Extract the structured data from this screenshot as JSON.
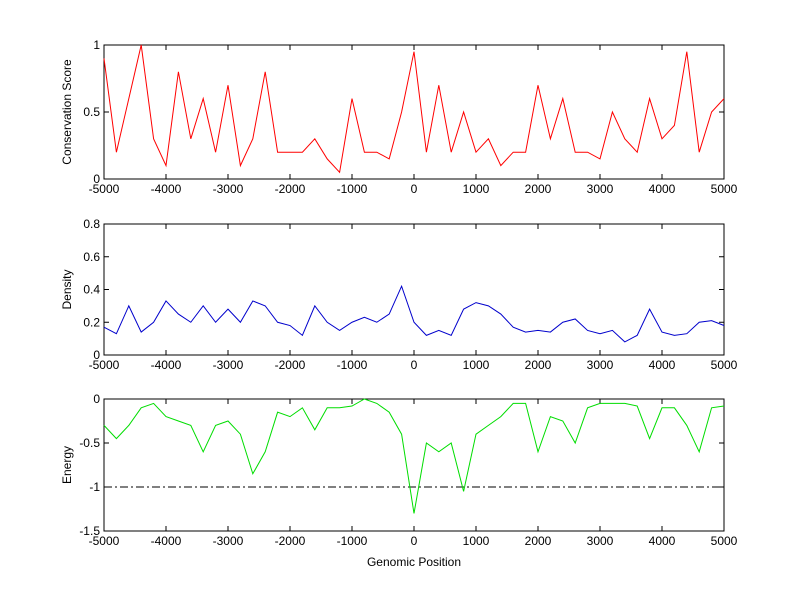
{
  "chart_data": [
    {
      "type": "line",
      "ylabel": "Conservation Score",
      "color": "#ff0000",
      "x": [
        -5000,
        -4800,
        -4600,
        -4400,
        -4200,
        -4000,
        -3800,
        -3600,
        -3400,
        -3200,
        -3000,
        -2800,
        -2600,
        -2400,
        -2200,
        -2000,
        -1800,
        -1600,
        -1400,
        -1200,
        -1000,
        -800,
        -600,
        -400,
        -200,
        0,
        200,
        400,
        600,
        800,
        1000,
        1200,
        1400,
        1600,
        1800,
        2000,
        2200,
        2400,
        2600,
        2800,
        3000,
        3200,
        3400,
        3600,
        3800,
        4000,
        4200,
        4400,
        4600,
        4800,
        5000
      ],
      "values": [
        0.9,
        0.2,
        0.6,
        1.0,
        0.3,
        0.1,
        0.8,
        0.3,
        0.6,
        0.2,
        0.7,
        0.1,
        0.3,
        0.8,
        0.2,
        0.2,
        0.2,
        0.3,
        0.15,
        0.05,
        0.6,
        0.2,
        0.2,
        0.15,
        0.5,
        0.95,
        0.2,
        0.7,
        0.2,
        0.5,
        0.2,
        0.3,
        0.1,
        0.2,
        0.2,
        0.7,
        0.3,
        0.6,
        0.2,
        0.2,
        0.15,
        0.5,
        0.3,
        0.2,
        0.6,
        0.3,
        0.4,
        0.95,
        0.2,
        0.5,
        0.6
      ],
      "xlim": [
        -5000,
        5000
      ],
      "xticks": [
        -5000,
        -4000,
        -3000,
        -2000,
        -1000,
        0,
        1000,
        2000,
        3000,
        4000,
        5000
      ],
      "ylim": [
        0,
        1
      ],
      "yticks": [
        0,
        0.5,
        1
      ]
    },
    {
      "type": "line",
      "ylabel": "Density",
      "color": "#0000cc",
      "x": [
        -5000,
        -4800,
        -4600,
        -4400,
        -4200,
        -4000,
        -3800,
        -3600,
        -3400,
        -3200,
        -3000,
        -2800,
        -2600,
        -2400,
        -2200,
        -2000,
        -1800,
        -1600,
        -1400,
        -1200,
        -1000,
        -800,
        -600,
        -400,
        -200,
        0,
        200,
        400,
        600,
        800,
        1000,
        1200,
        1400,
        1600,
        1800,
        2000,
        2200,
        2400,
        2600,
        2800,
        3000,
        3200,
        3400,
        3600,
        3800,
        4000,
        4200,
        4400,
        4600,
        4800,
        5000
      ],
      "values": [
        0.17,
        0.13,
        0.3,
        0.14,
        0.2,
        0.33,
        0.25,
        0.2,
        0.3,
        0.2,
        0.28,
        0.2,
        0.33,
        0.3,
        0.2,
        0.18,
        0.12,
        0.3,
        0.2,
        0.15,
        0.2,
        0.23,
        0.2,
        0.25,
        0.42,
        0.2,
        0.12,
        0.15,
        0.12,
        0.28,
        0.32,
        0.3,
        0.25,
        0.17,
        0.14,
        0.15,
        0.14,
        0.2,
        0.22,
        0.15,
        0.13,
        0.15,
        0.08,
        0.12,
        0.28,
        0.14,
        0.12,
        0.13,
        0.2,
        0.21,
        0.18
      ],
      "xlim": [
        -5000,
        5000
      ],
      "xticks": [
        -5000,
        -4000,
        -3000,
        -2000,
        -1000,
        0,
        1000,
        2000,
        3000,
        4000,
        5000
      ],
      "ylim": [
        0,
        0.8
      ],
      "yticks": [
        0,
        0.2,
        0.4,
        0.6,
        0.8
      ]
    },
    {
      "type": "line",
      "ylabel": "Energy",
      "xlabel": "Genomic Position",
      "color": "#00dd00",
      "x": [
        -5000,
        -4800,
        -4600,
        -4400,
        -4200,
        -4000,
        -3800,
        -3600,
        -3400,
        -3200,
        -3000,
        -2800,
        -2600,
        -2400,
        -2200,
        -2000,
        -1800,
        -1600,
        -1400,
        -1200,
        -1000,
        -800,
        -600,
        -400,
        -200,
        0,
        200,
        400,
        600,
        800,
        1000,
        1200,
        1400,
        1600,
        1800,
        2000,
        2200,
        2400,
        2600,
        2800,
        3000,
        3200,
        3400,
        3600,
        3800,
        4000,
        4200,
        4400,
        4600,
        4800,
        5000
      ],
      "values": [
        -0.3,
        -0.45,
        -0.3,
        -0.1,
        -0.05,
        -0.2,
        -0.25,
        -0.3,
        -0.6,
        -0.3,
        -0.25,
        -0.4,
        -0.85,
        -0.6,
        -0.15,
        -0.2,
        -0.1,
        -0.35,
        -0.1,
        -0.1,
        -0.08,
        0,
        -0.05,
        -0.15,
        -0.4,
        -1.3,
        -0.5,
        -0.6,
        -0.5,
        -1.05,
        -0.4,
        -0.3,
        -0.2,
        -0.05,
        -0.05,
        -0.6,
        -0.2,
        -0.25,
        -0.5,
        -0.1,
        -0.05,
        -0.05,
        -0.05,
        -0.08,
        -0.45,
        -0.1,
        -0.1,
        -0.3,
        -0.6,
        -0.1,
        -0.08
      ],
      "xlim": [
        -5000,
        5000
      ],
      "xticks": [
        -5000,
        -4000,
        -3000,
        -2000,
        -1000,
        0,
        1000,
        2000,
        3000,
        4000,
        5000
      ],
      "ylim": [
        -1.5,
        0
      ],
      "yticks": [
        -1.5,
        -1,
        -0.5,
        0
      ],
      "hline": {
        "value": -1,
        "color": "#000000",
        "style": "dashdot"
      }
    }
  ]
}
